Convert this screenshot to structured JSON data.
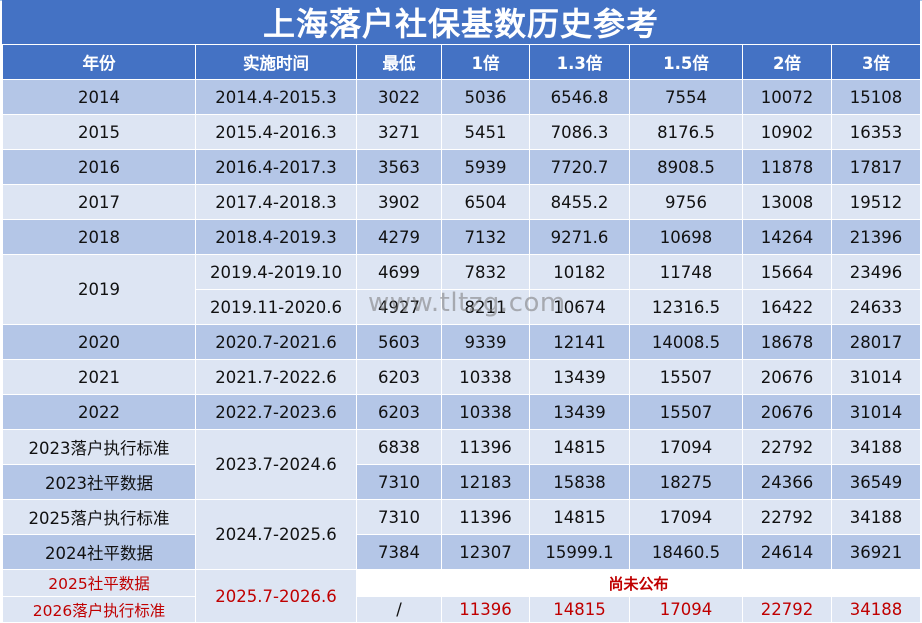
{
  "title": "上海落户社保基数历史参考",
  "headers": [
    "年份",
    "实施时间",
    "最低",
    "1倍",
    "1.3倍",
    "1.5倍",
    "2倍",
    "3倍"
  ],
  "rows": [
    {
      "year": "2014",
      "period": "2014.4-2015.3",
      "min": "3022",
      "x1": "5036",
      "x13": "6546.8",
      "x15": "7554",
      "x2": "10072",
      "x3": "15108"
    },
    {
      "year": "2015",
      "period": "2015.4-2016.3",
      "min": "3271",
      "x1": "5451",
      "x13": "7086.3",
      "x15": "8176.5",
      "x2": "10902",
      "x3": "16353"
    },
    {
      "year": "2016",
      "period": "2016.4-2017.3",
      "min": "3563",
      "x1": "5939",
      "x13": "7720.7",
      "x15": "8908.5",
      "x2": "11878",
      "x3": "17817"
    },
    {
      "year": "2017",
      "period": "2017.4-2018.3",
      "min": "3902",
      "x1": "6504",
      "x13": "8455.2",
      "x15": "9756",
      "x2": "13008",
      "x3": "19512"
    },
    {
      "year": "2018",
      "period": "2018.4-2019.3",
      "min": "4279",
      "x1": "7132",
      "x13": "9271.6",
      "x15": "10698",
      "x2": "14264",
      "x3": "21396"
    },
    {
      "year": "2019",
      "period": "2019.4-2019.10",
      "min": "4699",
      "x1": "7832",
      "x13": "10182",
      "x15": "11748",
      "x2": "15664",
      "x3": "23496"
    },
    {
      "year": "",
      "period": "2019.11-2020.6",
      "min": "4927",
      "x1": "8211",
      "x13": "10674",
      "x15": "12316.5",
      "x2": "16422",
      "x3": "24633"
    },
    {
      "year": "2020",
      "period": "2020.7-2021.6",
      "min": "5603",
      "x1": "9339",
      "x13": "12141",
      "x15": "14008.5",
      "x2": "18678",
      "x3": "28017"
    },
    {
      "year": "2021",
      "period": "2021.7-2022.6",
      "min": "6203",
      "x1": "10338",
      "x13": "13439",
      "x15": "15507",
      "x2": "20676",
      "x3": "31014"
    },
    {
      "year": "2022",
      "period": "2022.7-2023.6",
      "min": "6203",
      "x1": "10338",
      "x13": "13439",
      "x15": "15507",
      "x2": "20676",
      "x3": "31014"
    },
    {
      "year": "2023落户执行标准",
      "period": "2023.7-2024.6",
      "min": "6838",
      "x1": "11396",
      "x13": "14815",
      "x15": "17094",
      "x2": "22792",
      "x3": "34188"
    },
    {
      "year": "2023社平数据",
      "period": "",
      "min": "7310",
      "x1": "12183",
      "x13": "15838",
      "x15": "18275",
      "x2": "24366",
      "x3": "36549"
    },
    {
      "year": "2025落户执行标准",
      "period": "2024.7-2025.6",
      "min": "7310",
      "x1": "11396",
      "x13": "14815",
      "x15": "17094",
      "x2": "22792",
      "x3": "34188"
    },
    {
      "year": "2024社平数据",
      "period": "",
      "min": "7384",
      "x1": "12307",
      "x13": "15999.1",
      "x15": "18460.5",
      "x2": "24614",
      "x3": "36921"
    },
    {
      "year": "2025社平数据",
      "period": "2025.7-2026.6",
      "notice": "尚未公布"
    },
    {
      "year": "2026落户执行标准",
      "period": "",
      "min": "/",
      "x1": "11396",
      "x13": "14815",
      "x15": "17094",
      "x2": "22792",
      "x3": "34188"
    }
  ],
  "watermark": "www.tltzg.com",
  "colors": {
    "header": "#4472c4",
    "band": "#b4c6e7",
    "light": "#dde5f3",
    "highlight": "#c00000"
  }
}
